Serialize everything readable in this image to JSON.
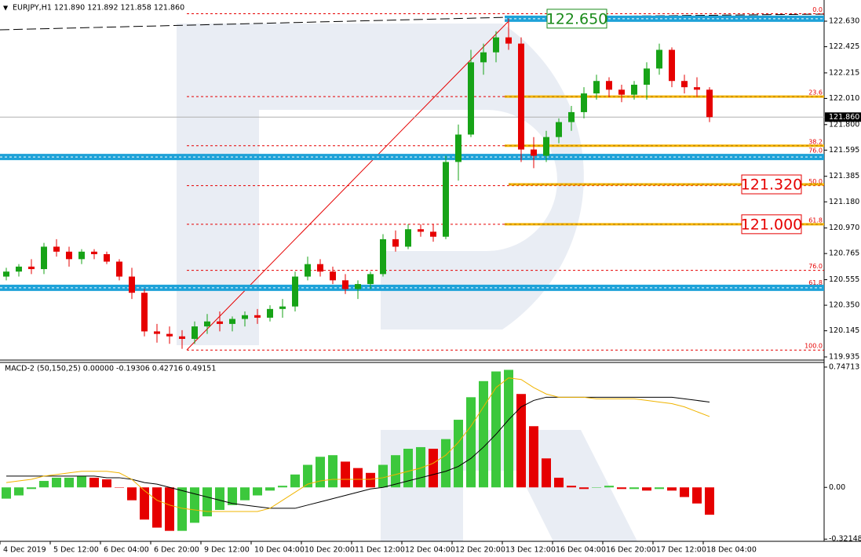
{
  "chart_data": [
    {
      "type": "candlestick",
      "title": "EURJPY,H1  121.890 121.892 121.858 121.860",
      "categories": [
        "4 Dec 2019",
        null,
        null,
        null,
        "5 Dec 12:00",
        null,
        null,
        null,
        "6 Dec 04:00",
        null,
        null,
        null,
        "6 Dec 20:00",
        null,
        null,
        null,
        "9 Dec 12:00",
        null,
        null,
        null,
        "10 Dec 04:00",
        null,
        null,
        null,
        "10 Dec 20:00",
        null,
        null,
        null,
        "11 Dec 12:00",
        null,
        null,
        null,
        "12 Dec 04:00",
        null,
        null,
        null,
        "12 Dec 20:00",
        null,
        null,
        null,
        "13 Dec 12:00",
        null,
        null,
        null,
        "16 Dec 04:00",
        null,
        null,
        null,
        "16 Dec 20:00",
        null,
        null,
        null,
        "17 Dec 12:00",
        null,
        null,
        null,
        "18 Dec 04:00"
      ],
      "open": [
        120.58,
        120.62,
        120.66,
        120.64,
        120.82,
        120.78,
        120.72,
        120.78,
        120.76,
        120.7,
        120.58,
        120.45,
        120.14,
        120.12,
        120.1,
        120.08,
        120.18,
        120.22,
        120.2,
        120.24,
        120.27,
        120.25,
        120.32,
        120.34,
        120.58,
        120.68,
        120.62,
        120.55,
        120.48,
        120.52,
        120.6,
        120.88,
        120.82,
        120.96,
        120.94,
        120.9,
        121.5,
        121.72,
        122.3,
        122.38,
        122.5,
        122.45,
        121.6,
        121.55,
        121.7,
        121.82,
        121.9,
        122.05,
        122.15,
        122.08,
        122.04,
        122.12,
        122.25,
        122.4,
        122.15,
        122.1,
        122.08
      ],
      "high": [
        120.65,
        120.68,
        120.72,
        120.85,
        120.88,
        120.82,
        120.8,
        120.8,
        120.78,
        120.72,
        120.65,
        120.48,
        120.2,
        120.18,
        120.15,
        120.22,
        120.28,
        120.3,
        120.26,
        120.3,
        120.32,
        120.35,
        120.4,
        120.62,
        120.74,
        120.72,
        120.66,
        120.6,
        120.55,
        120.62,
        120.92,
        120.95,
        121.0,
        121.0,
        121.0,
        121.55,
        121.8,
        122.4,
        122.45,
        122.55,
        122.65,
        122.5,
        121.7,
        121.75,
        121.85,
        121.95,
        122.1,
        122.2,
        122.18,
        122.12,
        122.15,
        122.3,
        122.45,
        122.42,
        122.2,
        122.18,
        122.1
      ],
      "low": [
        120.55,
        120.58,
        120.6,
        120.6,
        120.74,
        120.66,
        120.68,
        120.72,
        120.68,
        120.55,
        120.4,
        120.1,
        120.05,
        120.04,
        120.0,
        120.04,
        120.12,
        120.14,
        120.14,
        120.18,
        120.2,
        120.22,
        120.25,
        120.3,
        120.55,
        120.58,
        120.52,
        120.44,
        120.4,
        120.48,
        120.58,
        120.78,
        120.8,
        120.9,
        120.86,
        120.88,
        121.35,
        121.7,
        122.2,
        122.3,
        122.4,
        121.5,
        121.45,
        121.5,
        121.65,
        121.75,
        121.85,
        122.0,
        122.02,
        121.98,
        122.0,
        122.0,
        122.2,
        122.1,
        122.05,
        122.02,
        121.82
      ],
      "close": [
        120.62,
        120.66,
        120.64,
        120.82,
        120.78,
        120.72,
        120.78,
        120.76,
        120.7,
        120.58,
        120.45,
        120.14,
        120.12,
        120.1,
        120.08,
        120.18,
        120.22,
        120.2,
        120.24,
        120.27,
        120.25,
        120.32,
        120.34,
        120.58,
        120.68,
        120.62,
        120.55,
        120.48,
        120.52,
        120.6,
        120.88,
        120.82,
        120.96,
        120.94,
        120.9,
        121.5,
        121.72,
        122.3,
        122.38,
        122.5,
        122.45,
        121.6,
        121.55,
        121.7,
        121.82,
        121.9,
        122.05,
        122.15,
        122.08,
        122.04,
        122.12,
        122.25,
        122.4,
        122.15,
        122.1,
        122.08,
        121.86
      ],
      "up_color": "#17a317",
      "down_color": "#e60000",
      "ylim": [
        119.916,
        122.8
      ],
      "yticks": [
        {
          "value": 122.63,
          "label": "122.630"
        },
        122.425,
        122.215,
        {
          "value": 122.01,
          "label": "122.010"
        },
        {
          "value": 121.8,
          "label": "121.800"
        },
        121.595,
        121.385,
        {
          "value": 121.18,
          "label": "121.180"
        },
        {
          "value": 120.97,
          "label": "120.970"
        },
        120.765,
        120.555,
        {
          "value": 120.35,
          "label": "120.350"
        },
        120.145,
        119.935
      ],
      "current_price": {
        "value": 121.86,
        "label": "121.860"
      },
      "fibonacci": [
        {
          "label": "0.0",
          "value": 122.69
        },
        {
          "label": "23.6",
          "value": 122.025
        },
        {
          "label": "38.2",
          "value": 121.63
        },
        {
          "label": "50.0",
          "value": 121.31
        },
        {
          "label": "61.8",
          "value": 121.0
        },
        {
          "label": "76.0",
          "value": 120.63
        },
        {
          "label": "100.0",
          "value": 119.99
        }
      ],
      "fibonacci_2": [
        {
          "label": "76.0",
          "value": 121.56
        },
        {
          "label": "61.8",
          "value": 120.5
        }
      ],
      "levels": [
        {
          "value": 122.65,
          "color": "#1ea2d8"
        },
        {
          "value": 121.54,
          "color": "#1ea2d8"
        },
        {
          "value": 120.49,
          "color": "#1ea2d8"
        },
        {
          "value": 122.025,
          "color": "#f5b400"
        },
        {
          "value": 121.63,
          "color": "#f5b400"
        },
        {
          "value": 121.32,
          "color": "#f5b400"
        },
        {
          "value": 121.0,
          "color": "#f5b400"
        }
      ],
      "price_labels": [
        {
          "value": 122.65,
          "label": "122.650",
          "color": "#1a8a1a"
        },
        {
          "value": 121.32,
          "label": "121.320",
          "color": "#e60000"
        },
        {
          "value": 121.0,
          "label": "121.000",
          "color": "#e60000"
        }
      ]
    },
    {
      "type": "macd",
      "title": "MACD-2 (50,150,25) 0.00000 -0.19306 0.42716 0.49151",
      "histogram": [
        -0.07,
        -0.05,
        -0.01,
        0.04,
        0.06,
        0.06,
        0.07,
        0.06,
        0.05,
        0.0,
        -0.08,
        -0.2,
        -0.25,
        -0.27,
        -0.27,
        -0.22,
        -0.18,
        -0.14,
        -0.11,
        -0.08,
        -0.05,
        -0.02,
        0.01,
        0.08,
        0.14,
        0.19,
        0.2,
        0.16,
        0.12,
        0.09,
        0.14,
        0.2,
        0.24,
        0.25,
        0.24,
        0.3,
        0.42,
        0.56,
        0.66,
        0.72,
        0.73,
        0.58,
        0.38,
        0.18,
        0.06,
        0.01,
        -0.01,
        0.0,
        0.01,
        -0.01,
        -0.01,
        -0.02,
        -0.01,
        -0.02,
        -0.06,
        -0.1,
        -0.17
      ],
      "up_color": "#3cc83c",
      "down_color": "#e60000",
      "series": [
        {
          "color": "#000000",
          "values": [
            0.07,
            0.07,
            0.07,
            0.07,
            0.07,
            0.07,
            0.07,
            0.07,
            0.06,
            0.06,
            0.05,
            0.03,
            0.02,
            0.0,
            -0.02,
            -0.04,
            -0.06,
            -0.08,
            -0.1,
            -0.11,
            -0.12,
            -0.13,
            -0.13,
            -0.13,
            -0.11,
            -0.09,
            -0.07,
            -0.05,
            -0.03,
            -0.01,
            0.0,
            0.02,
            0.04,
            0.06,
            0.08,
            0.1,
            0.13,
            0.18,
            0.25,
            0.33,
            0.42,
            0.5,
            0.54,
            0.56,
            0.56,
            0.56,
            0.56,
            0.56,
            0.56,
            0.56,
            0.56,
            0.56,
            0.56,
            0.56,
            0.55,
            0.54,
            0.53
          ]
        },
        {
          "color": "#f0b400",
          "values": [
            0.03,
            0.04,
            0.05,
            0.07,
            0.08,
            0.09,
            0.1,
            0.1,
            0.1,
            0.09,
            0.05,
            -0.02,
            -0.08,
            -0.11,
            -0.13,
            -0.14,
            -0.15,
            -0.15,
            -0.15,
            -0.15,
            -0.15,
            -0.13,
            -0.08,
            -0.03,
            0.02,
            0.04,
            0.05,
            0.05,
            0.05,
            0.05,
            0.06,
            0.08,
            0.1,
            0.12,
            0.15,
            0.2,
            0.28,
            0.38,
            0.5,
            0.62,
            0.68,
            0.67,
            0.62,
            0.58,
            0.56,
            0.56,
            0.56,
            0.55,
            0.55,
            0.55,
            0.55,
            0.54,
            0.53,
            0.52,
            0.5,
            0.47,
            0.44
          ]
        }
      ],
      "ylim": [
        -0.335,
        0.776
      ],
      "yticks": [
        0.74713,
        {
          "value": 0,
          "label": "0.00"
        },
        -0.32148
      ]
    }
  ]
}
